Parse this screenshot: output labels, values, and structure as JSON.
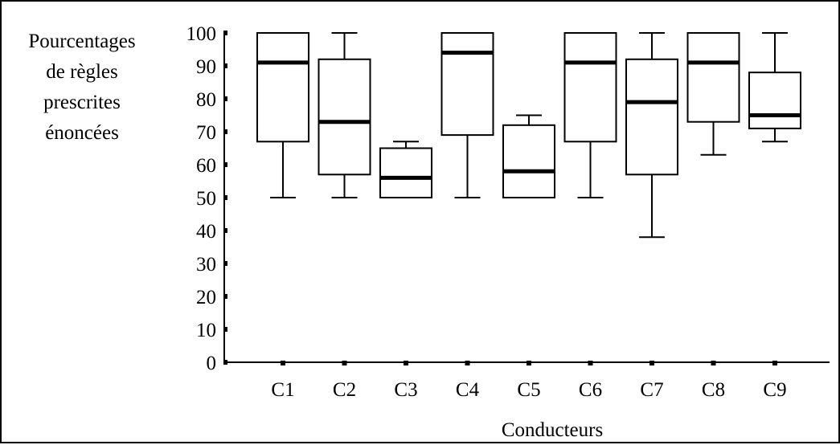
{
  "chart_data": {
    "type": "boxplot",
    "ylabel_lines": [
      "Pourcentages",
      "de règles",
      "prescrites",
      "énoncées"
    ],
    "xlabel": "Conducteurs",
    "ylim": [
      0,
      100
    ],
    "yticks": [
      0,
      10,
      20,
      30,
      40,
      50,
      60,
      70,
      80,
      90,
      100
    ],
    "grid": false,
    "categories": [
      "C1",
      "C2",
      "C3",
      "C4",
      "C5",
      "C6",
      "C7",
      "C8",
      "C9"
    ],
    "boxes": [
      {
        "category": "C1",
        "min": 50,
        "q1": 67,
        "median": 91,
        "q3": 100,
        "max": 100
      },
      {
        "category": "C2",
        "min": 50,
        "q1": 57,
        "median": 73,
        "q3": 92,
        "max": 100
      },
      {
        "category": "C3",
        "min": 50,
        "q1": 50,
        "median": 56,
        "q3": 65,
        "max": 67
      },
      {
        "category": "C4",
        "min": 50,
        "q1": 69,
        "median": 94,
        "q3": 100,
        "max": 100
      },
      {
        "category": "C5",
        "min": 50,
        "q1": 50,
        "median": 58,
        "q3": 72,
        "max": 75
      },
      {
        "category": "C6",
        "min": 50,
        "q1": 67,
        "median": 91,
        "q3": 100,
        "max": 100
      },
      {
        "category": "C7",
        "min": 38,
        "q1": 57,
        "median": 79,
        "q3": 92,
        "max": 100
      },
      {
        "category": "C8",
        "min": 63,
        "q1": 73,
        "median": 91,
        "q3": 100,
        "max": 100
      },
      {
        "category": "C9",
        "min": 67,
        "q1": 71,
        "median": 75,
        "q3": 88,
        "max": 100
      }
    ],
    "colors": {
      "box_stroke": "#000000",
      "median_line": "#000000",
      "background": "#ffffff"
    }
  }
}
